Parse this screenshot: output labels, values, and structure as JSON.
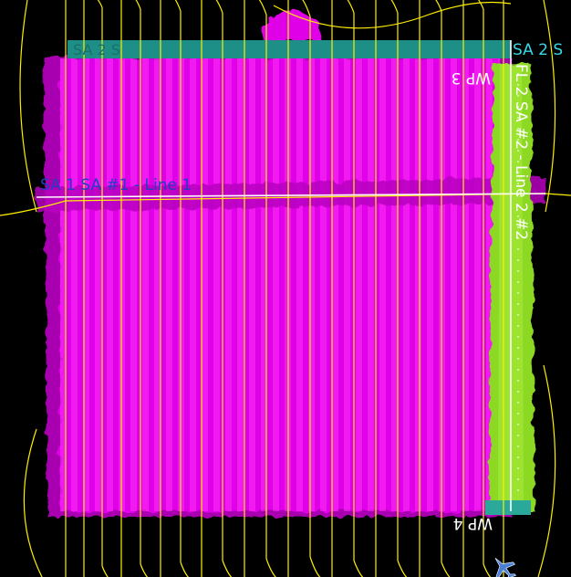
{
  "map": {
    "labels": {
      "sa2_line_top": "SA 2 S",
      "sa2_top_faint": "SA 2 S",
      "wp3": "WP 3",
      "wp4": "WP 4",
      "sa1_line": "SA 1 SA #1 - Line 1",
      "fl2_line": "FL 2 SA #2 - Line 2 #2"
    },
    "colors": {
      "background": "#000000",
      "coverage_main": "#e000e8",
      "coverage_dark": "#a800b0",
      "coverage_green": "#8cd820",
      "track": "#ffee00",
      "teal_band": "#1e8f86",
      "label_white": "#ffffff",
      "label_cyan": "#38d8e8",
      "aircraft": "#4a7fd4"
    },
    "icons": {
      "aircraft": "airplane-icon"
    }
  }
}
